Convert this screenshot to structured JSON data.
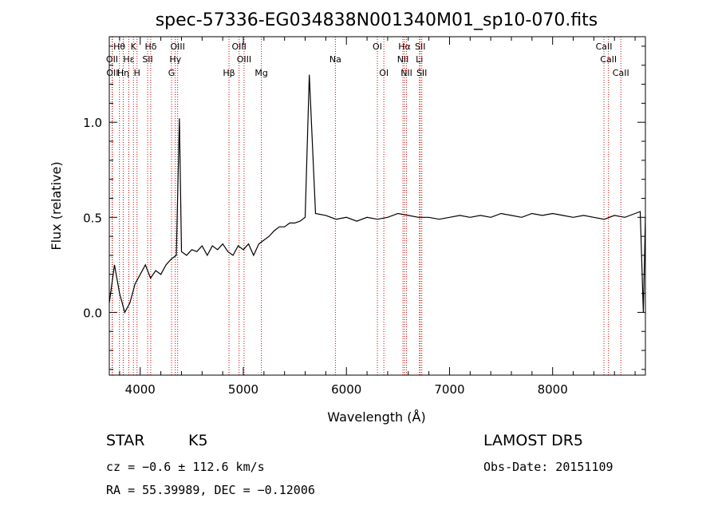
{
  "chart_data": {
    "type": "line",
    "title": "spec-57336-EG034838N001340M01_sp10-070.fits",
    "xlabel": "Wavelength (Å)",
    "ylabel": "Flux (relative)",
    "xlim": [
      3700,
      8900
    ],
    "ylim": [
      -0.33,
      1.45
    ],
    "xticks": [
      4000,
      5000,
      6000,
      7000,
      8000
    ],
    "yticks": [
      0.0,
      0.5,
      1.0
    ],
    "xtick_labels": [
      "4000",
      "5000",
      "6000",
      "7000",
      "8000"
    ],
    "ytick_labels": [
      "0.0",
      "0.5",
      "1.0"
    ],
    "grid": false,
    "line_color": "#000000",
    "marker_color": "#cc0000",
    "spectral_lines": [
      {
        "label": "Hθ",
        "wavelength": 3798,
        "row": 1
      },
      {
        "label": "OII",
        "wavelength": 3727,
        "row": 2
      },
      {
        "label": "OII",
        "wavelength": 3730,
        "row": 3
      },
      {
        "label": "Hε",
        "wavelength": 3889,
        "row": 2
      },
      {
        "label": "Hη",
        "wavelength": 3835,
        "row": 3
      },
      {
        "label": "K",
        "wavelength": 3934,
        "row": 1
      },
      {
        "label": "H",
        "wavelength": 3969,
        "row": 3
      },
      {
        "label": "Hδ",
        "wavelength": 4102,
        "row": 1
      },
      {
        "label": "SII",
        "wavelength": 4072,
        "row": 2
      },
      {
        "label": "OIII",
        "wavelength": 4363,
        "row": 1
      },
      {
        "label": "Hγ",
        "wavelength": 4340,
        "row": 2
      },
      {
        "label": "G",
        "wavelength": 4304,
        "row": 3
      },
      {
        "label": "OIII",
        "wavelength": 4959,
        "row": 1
      },
      {
        "label": "OIII",
        "wavelength": 5007,
        "row": 2
      },
      {
        "label": "Hβ",
        "wavelength": 4861,
        "row": 3
      },
      {
        "label": "Mg",
        "wavelength": 5175,
        "row": 3
      },
      {
        "label": "Na",
        "wavelength": 5893,
        "row": 2
      },
      {
        "label": "OI",
        "wavelength": 6300,
        "row": 1
      },
      {
        "label": "OI",
        "wavelength": 6363,
        "row": 3
      },
      {
        "label": "Hα",
        "wavelength": 6563,
        "row": 1
      },
      {
        "label": "NII",
        "wavelength": 6548,
        "row": 2
      },
      {
        "label": "NII",
        "wavelength": 6583,
        "row": 3
      },
      {
        "label": "SII",
        "wavelength": 6716,
        "row": 1
      },
      {
        "label": "Li",
        "wavelength": 6708,
        "row": 2
      },
      {
        "label": "SII",
        "wavelength": 6731,
        "row": 3
      },
      {
        "label": "CaII",
        "wavelength": 8498,
        "row": 1
      },
      {
        "label": "CaII",
        "wavelength": 8542,
        "row": 2
      },
      {
        "label": "CaII",
        "wavelength": 8662,
        "row": 3
      }
    ],
    "series": [
      {
        "x": [
          3700,
          3750,
          3800,
          3850,
          3900,
          3950,
          4000,
          4050,
          4100,
          4150,
          4200,
          4250,
          4300,
          4350,
          4380,
          4400,
          4450,
          4500,
          4550,
          4600,
          4650,
          4700,
          4750,
          4800,
          4850,
          4900,
          4950,
          5000,
          5050,
          5100,
          5150,
          5200,
          5250,
          5300,
          5350,
          5400,
          5450,
          5500,
          5550,
          5600,
          5640,
          5700,
          5800,
          5900,
          6000,
          6100,
          6200,
          6300,
          6400,
          6500,
          6600,
          6700,
          6800,
          6900,
          7000,
          7100,
          7200,
          7300,
          7400,
          7500,
          7600,
          7700,
          7800,
          7900,
          8000,
          8100,
          8200,
          8300,
          8400,
          8500,
          8600,
          8700,
          8800,
          8850,
          8880,
          8900
        ],
        "y": [
          0.05,
          0.25,
          0.1,
          0.0,
          0.05,
          0.15,
          0.2,
          0.25,
          0.18,
          0.22,
          0.2,
          0.25,
          0.28,
          0.3,
          1.02,
          0.32,
          0.3,
          0.33,
          0.32,
          0.35,
          0.3,
          0.35,
          0.33,
          0.36,
          0.32,
          0.3,
          0.35,
          0.33,
          0.36,
          0.3,
          0.36,
          0.38,
          0.4,
          0.43,
          0.45,
          0.45,
          0.47,
          0.47,
          0.48,
          0.5,
          1.25,
          0.52,
          0.51,
          0.49,
          0.5,
          0.48,
          0.5,
          0.49,
          0.5,
          0.52,
          0.51,
          0.5,
          0.5,
          0.49,
          0.5,
          0.51,
          0.5,
          0.51,
          0.5,
          0.52,
          0.51,
          0.5,
          0.52,
          0.51,
          0.52,
          0.51,
          0.5,
          0.51,
          0.5,
          0.49,
          0.51,
          0.5,
          0.52,
          0.53,
          0.0,
          0.5
        ]
      }
    ]
  },
  "info": {
    "object_class": "STAR",
    "subclass": "K5",
    "survey": "LAMOST DR5",
    "cz": "cz = −0.6 ± 112.6 km/s",
    "obs_date": "Obs-Date: 20151109",
    "coords": "RA =  55.39989, DEC =  −0.12006"
  }
}
